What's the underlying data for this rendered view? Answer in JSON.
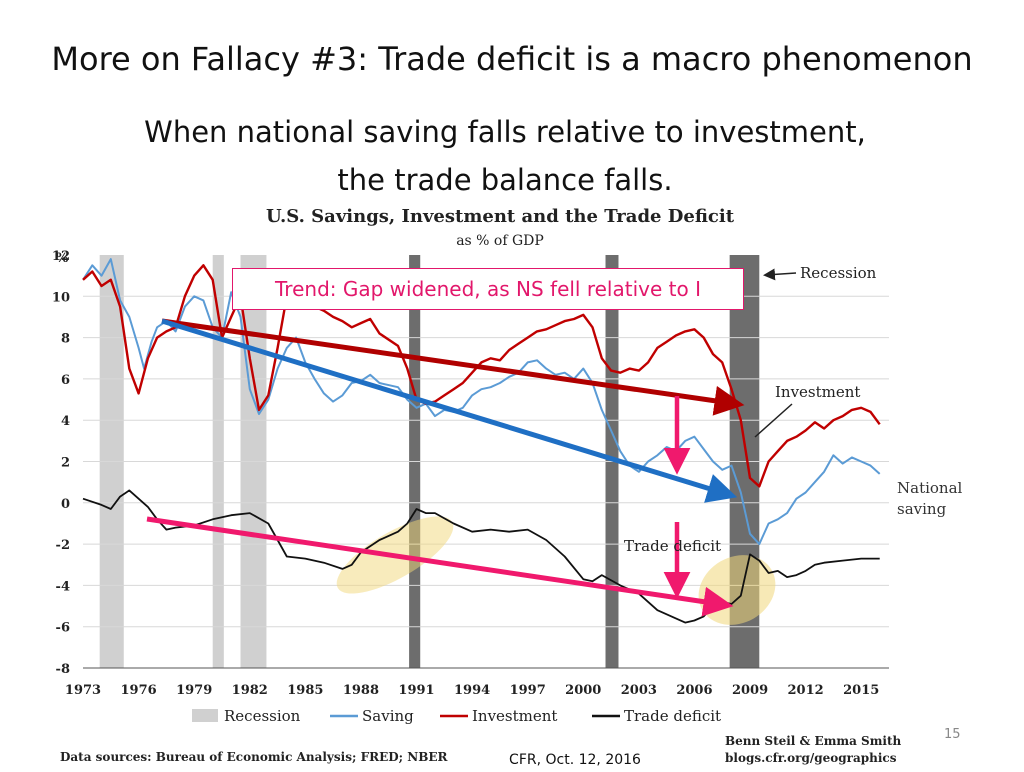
{
  "slide": {
    "title": "More on Fallacy #3:  Trade deficit is a macro phenomenon",
    "subtitle_line1": "When national saving falls relative to investment,",
    "subtitle_line2": "the trade balance falls.",
    "trend_note": "Trend: Gap widened, as NS fell relative to I",
    "side_label_line1": "National",
    "side_label_line2": "saving",
    "footer": "CFR, Oct. 12, 2016",
    "page_number": "15"
  },
  "chart_data": {
    "type": "line",
    "title": "U.S. Savings, Investment and the Trade Deficit",
    "subtitle": "as % of GDP",
    "ylabel": "%",
    "ylim": [
      -8,
      12
    ],
    "yticks": [
      "12",
      "10",
      "8",
      "6",
      "4",
      "2",
      "0",
      "-2",
      "-4",
      "-6",
      "-8"
    ],
    "xlim": [
      1973,
      2016.5
    ],
    "xticks": [
      "1973",
      "1976",
      "1979",
      "1982",
      "1985",
      "1988",
      "1991",
      "1994",
      "1997",
      "2000",
      "2003",
      "2006",
      "2009",
      "2012",
      "2015"
    ],
    "grid": true,
    "recessions": [
      [
        1973.9,
        1975.2
      ],
      [
        1980.0,
        1980.6
      ],
      [
        1981.5,
        1982.9
      ],
      [
        1990.6,
        1991.2
      ],
      [
        2001.2,
        2001.9
      ],
      [
        2007.9,
        2009.5
      ]
    ],
    "annotations": {
      "recession_label": "Recession",
      "investment_label": "Investment",
      "trade_deficit_label": "Trade deficit"
    },
    "legend": [
      "Recession",
      "Saving",
      "Investment",
      "Trade deficit"
    ],
    "legend_position": "bottom",
    "sources": "Data sources: Bureau of Economic Analysis; FRED; NBER",
    "credit_line1": "Benn Steil & Emma Smith",
    "credit_line2": "blogs.cfr.org/geographics",
    "colors": {
      "saving": "#5b9bd5",
      "investment": "#c00000",
      "trade_deficit": "#111111",
      "recession": "#d0d0d0",
      "recession_dark": "#6d6d6d"
    },
    "series": [
      {
        "name": "Saving",
        "points": [
          [
            1973,
            10.8
          ],
          [
            1973.5,
            11.5
          ],
          [
            1974,
            11
          ],
          [
            1974.5,
            11.8
          ],
          [
            1975,
            9.8
          ],
          [
            1975.5,
            9
          ],
          [
            1976,
            7.5
          ],
          [
            1976.3,
            6.5
          ],
          [
            1976.7,
            7.8
          ],
          [
            1977,
            8.5
          ],
          [
            1977.5,
            8.8
          ],
          [
            1978,
            8.3
          ],
          [
            1978.5,
            9.5
          ],
          [
            1979,
            10
          ],
          [
            1979.5,
            9.8
          ],
          [
            1980,
            8.5
          ],
          [
            1980.5,
            8
          ],
          [
            1981,
            10.2
          ],
          [
            1981.5,
            9
          ],
          [
            1982,
            5.5
          ],
          [
            1982.5,
            4.3
          ],
          [
            1983,
            5
          ],
          [
            1983.5,
            6.5
          ],
          [
            1984,
            7.5
          ],
          [
            1984.5,
            8
          ],
          [
            1985,
            6.8
          ],
          [
            1985.5,
            6
          ],
          [
            1986,
            5.3
          ],
          [
            1986.5,
            4.9
          ],
          [
            1987,
            5.2
          ],
          [
            1987.5,
            5.8
          ],
          [
            1988,
            5.9
          ],
          [
            1988.5,
            6.2
          ],
          [
            1989,
            5.8
          ],
          [
            1990,
            5.6
          ],
          [
            1990.5,
            5
          ],
          [
            1991,
            4.6
          ],
          [
            1991.5,
            4.8
          ],
          [
            1992,
            4.2
          ],
          [
            1992.5,
            4.5
          ],
          [
            1993,
            4.4
          ],
          [
            1993.5,
            4.6
          ],
          [
            1994,
            5.2
          ],
          [
            1994.5,
            5.5
          ],
          [
            1995,
            5.6
          ],
          [
            1995.5,
            5.8
          ],
          [
            1996,
            6.1
          ],
          [
            1996.5,
            6.3
          ],
          [
            1997,
            6.8
          ],
          [
            1997.5,
            6.9
          ],
          [
            1998,
            6.5
          ],
          [
            1998.5,
            6.2
          ],
          [
            1999,
            6.3
          ],
          [
            1999.5,
            6
          ],
          [
            2000,
            6.5
          ],
          [
            2000.5,
            5.8
          ],
          [
            2001,
            4.5
          ],
          [
            2001.5,
            3.5
          ],
          [
            2002,
            2.5
          ],
          [
            2002.5,
            1.8
          ],
          [
            2003,
            1.5
          ],
          [
            2003.5,
            2
          ],
          [
            2004,
            2.3
          ],
          [
            2004.5,
            2.7
          ],
          [
            2005,
            2.5
          ],
          [
            2005.5,
            3
          ],
          [
            2006,
            3.2
          ],
          [
            2006.5,
            2.6
          ],
          [
            2007,
            2
          ],
          [
            2007.5,
            1.6
          ],
          [
            2008,
            1.8
          ],
          [
            2008.5,
            0.5
          ],
          [
            2009,
            -1.5
          ],
          [
            2009.5,
            -2
          ],
          [
            2010,
            -1
          ],
          [
            2010.5,
            -0.8
          ],
          [
            2011,
            -0.5
          ],
          [
            2011.5,
            0.2
          ],
          [
            2012,
            0.5
          ],
          [
            2012.5,
            1
          ],
          [
            2013,
            1.5
          ],
          [
            2013.5,
            2.3
          ],
          [
            2014,
            1.9
          ],
          [
            2014.5,
            2.2
          ],
          [
            2015,
            2
          ],
          [
            2015.5,
            1.8
          ],
          [
            2016,
            1.4
          ]
        ]
      },
      {
        "name": "Investment",
        "points": [
          [
            1973,
            10.8
          ],
          [
            1973.5,
            11.2
          ],
          [
            1974,
            10.5
          ],
          [
            1974.5,
            10.8
          ],
          [
            1975,
            9.5
          ],
          [
            1975.5,
            6.5
          ],
          [
            1976,
            5.3
          ],
          [
            1976.5,
            7
          ],
          [
            1977,
            8
          ],
          [
            1977.5,
            8.3
          ],
          [
            1978,
            8.5
          ],
          [
            1978.5,
            10
          ],
          [
            1979,
            11
          ],
          [
            1979.5,
            11.5
          ],
          [
            1980,
            10.8
          ],
          [
            1980.5,
            8
          ],
          [
            1981,
            9
          ],
          [
            1981.5,
            10
          ],
          [
            1982,
            7
          ],
          [
            1982.5,
            4.5
          ],
          [
            1983,
            5.2
          ],
          [
            1983.5,
            7.5
          ],
          [
            1984,
            10
          ],
          [
            1984.5,
            10.5
          ],
          [
            1985,
            9.8
          ],
          [
            1985.5,
            9.5
          ],
          [
            1986,
            9.3
          ],
          [
            1986.5,
            9
          ],
          [
            1987,
            8.8
          ],
          [
            1987.5,
            8.5
          ],
          [
            1988,
            8.7
          ],
          [
            1988.5,
            8.9
          ],
          [
            1989,
            8.2
          ],
          [
            1990,
            7.6
          ],
          [
            1990.5,
            6.5
          ],
          [
            1991,
            5
          ],
          [
            1991.5,
            4.8
          ],
          [
            1992,
            4.9
          ],
          [
            1992.5,
            5.2
          ],
          [
            1993,
            5.5
          ],
          [
            1993.5,
            5.8
          ],
          [
            1994,
            6.3
          ],
          [
            1994.5,
            6.8
          ],
          [
            1995,
            7
          ],
          [
            1995.5,
            6.9
          ],
          [
            1996,
            7.4
          ],
          [
            1996.5,
            7.7
          ],
          [
            1997,
            8
          ],
          [
            1997.5,
            8.3
          ],
          [
            1998,
            8.4
          ],
          [
            1998.5,
            8.6
          ],
          [
            1999,
            8.8
          ],
          [
            1999.5,
            8.9
          ],
          [
            2000,
            9.1
          ],
          [
            2000.5,
            8.5
          ],
          [
            2001,
            7
          ],
          [
            2001.5,
            6.4
          ],
          [
            2002,
            6.3
          ],
          [
            2002.5,
            6.5
          ],
          [
            2003,
            6.4
          ],
          [
            2003.5,
            6.8
          ],
          [
            2004,
            7.5
          ],
          [
            2004.5,
            7.8
          ],
          [
            2005,
            8.1
          ],
          [
            2005.5,
            8.3
          ],
          [
            2006,
            8.4
          ],
          [
            2006.5,
            8
          ],
          [
            2007,
            7.2
          ],
          [
            2007.5,
            6.8
          ],
          [
            2008,
            5.5
          ],
          [
            2008.5,
            4
          ],
          [
            2009,
            1.2
          ],
          [
            2009.5,
            0.8
          ],
          [
            2010,
            2
          ],
          [
            2010.5,
            2.5
          ],
          [
            2011,
            3
          ],
          [
            2011.5,
            3.2
          ],
          [
            2012,
            3.5
          ],
          [
            2012.5,
            3.9
          ],
          [
            2013,
            3.6
          ],
          [
            2013.5,
            4
          ],
          [
            2014,
            4.2
          ],
          [
            2014.5,
            4.5
          ],
          [
            2015,
            4.6
          ],
          [
            2015.5,
            4.4
          ],
          [
            2016,
            3.8
          ]
        ]
      },
      {
        "name": "Trade deficit",
        "points": [
          [
            1973,
            0.2
          ],
          [
            1974,
            -0.1
          ],
          [
            1974.5,
            -0.3
          ],
          [
            1975,
            0.3
          ],
          [
            1975.5,
            0.6
          ],
          [
            1976,
            0.2
          ],
          [
            1976.5,
            -0.2
          ],
          [
            1977,
            -0.8
          ],
          [
            1977.5,
            -1.3
          ],
          [
            1978,
            -1.2
          ],
          [
            1979,
            -1.1
          ],
          [
            1980,
            -0.8
          ],
          [
            1981,
            -0.6
          ],
          [
            1982,
            -0.5
          ],
          [
            1983,
            -1
          ],
          [
            1983.5,
            -1.8
          ],
          [
            1984,
            -2.6
          ],
          [
            1985,
            -2.7
          ],
          [
            1986,
            -2.9
          ],
          [
            1987,
            -3.2
          ],
          [
            1987.5,
            -3
          ],
          [
            1988,
            -2.4
          ],
          [
            1989,
            -1.8
          ],
          [
            1990,
            -1.4
          ],
          [
            1990.5,
            -1
          ],
          [
            1991,
            -0.3
          ],
          [
            1991.5,
            -0.5
          ],
          [
            1992,
            -0.5
          ],
          [
            1993,
            -1
          ],
          [
            1994,
            -1.4
          ],
          [
            1995,
            -1.3
          ],
          [
            1996,
            -1.4
          ],
          [
            1997,
            -1.3
          ],
          [
            1998,
            -1.8
          ],
          [
            1999,
            -2.6
          ],
          [
            2000,
            -3.7
          ],
          [
            2000.5,
            -3.8
          ],
          [
            2001,
            -3.5
          ],
          [
            2002,
            -4
          ],
          [
            2003,
            -4.4
          ],
          [
            2004,
            -5.2
          ],
          [
            2005,
            -5.6
          ],
          [
            2005.5,
            -5.8
          ],
          [
            2006,
            -5.7
          ],
          [
            2006.5,
            -5.5
          ],
          [
            2007,
            -5
          ],
          [
            2007.5,
            -4.8
          ],
          [
            2008,
            -4.9
          ],
          [
            2008.5,
            -4.5
          ],
          [
            2009,
            -2.5
          ],
          [
            2009.5,
            -2.8
          ],
          [
            2010,
            -3.4
          ],
          [
            2010.5,
            -3.3
          ],
          [
            2011,
            -3.6
          ],
          [
            2011.5,
            -3.5
          ],
          [
            2012,
            -3.3
          ],
          [
            2012.5,
            -3
          ],
          [
            2013,
            -2.9
          ],
          [
            2014,
            -2.8
          ],
          [
            2015,
            -2.7
          ],
          [
            2016,
            -2.7
          ]
        ]
      }
    ]
  }
}
